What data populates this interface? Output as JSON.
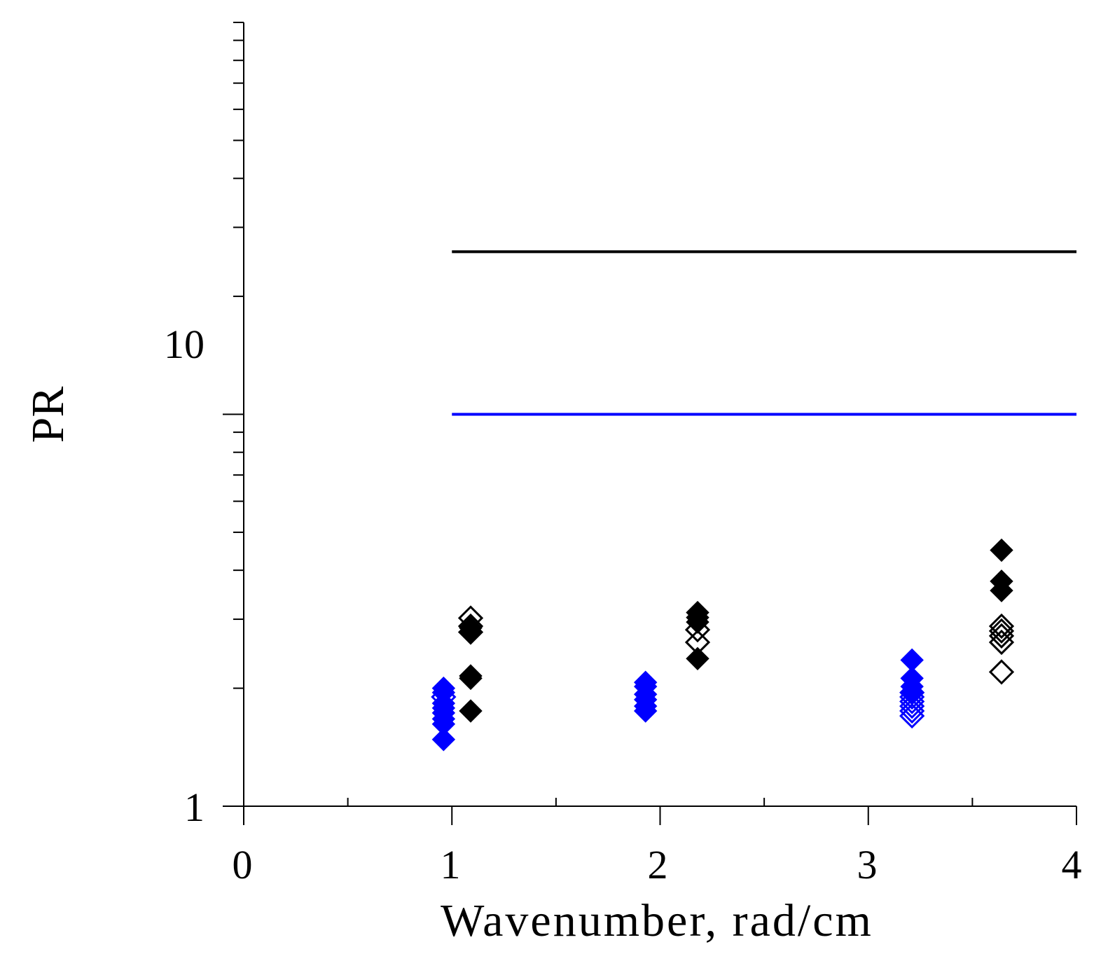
{
  "chart_data": {
    "type": "scatter",
    "title": "",
    "xlabel": "Wavenumber, rad/cm",
    "ylabel": "PR",
    "xlim": [
      0,
      4
    ],
    "ylim": [
      1,
      100
    ],
    "y_scale": "log",
    "x_tick_labels": [
      "0",
      "1",
      "2",
      "3",
      "4"
    ],
    "y_tick_labels": [
      "1",
      "10"
    ],
    "grid": false,
    "reference_lines": [
      {
        "y": 26,
        "x_range": [
          1,
          4
        ],
        "color": "#000000"
      },
      {
        "y": 10,
        "x_range": [
          1,
          4
        ],
        "color": "#0000ff"
      }
    ],
    "series": [
      {
        "color": "#0000ff",
        "marker": "diamond-filled",
        "points": [
          [
            0.96,
            1.48
          ],
          [
            0.96,
            1.62
          ],
          [
            0.96,
            1.67
          ],
          [
            0.96,
            1.73
          ],
          [
            0.96,
            1.78
          ],
          [
            0.96,
            1.83
          ],
          [
            0.96,
            1.95
          ],
          [
            0.96,
            2.0
          ],
          [
            1.93,
            1.75
          ],
          [
            1.93,
            1.8
          ],
          [
            1.93,
            1.87
          ],
          [
            1.93,
            1.93
          ],
          [
            1.93,
            2.02
          ],
          [
            1.93,
            2.07
          ],
          [
            3.21,
            1.95
          ],
          [
            3.21,
            2.02
          ],
          [
            3.21,
            2.12
          ],
          [
            3.21,
            2.36
          ]
        ]
      },
      {
        "color": "#0000ff",
        "marker": "diamond-open",
        "points": [
          [
            0.96,
            1.9
          ],
          [
            3.21,
            1.7
          ],
          [
            3.21,
            1.75
          ],
          [
            3.21,
            1.8
          ],
          [
            3.21,
            1.85
          ],
          [
            3.21,
            1.9
          ],
          [
            3.21,
            1.95
          ]
        ]
      },
      {
        "color": "#000000",
        "marker": "diamond-filled",
        "points": [
          [
            1.09,
            1.75
          ],
          [
            1.09,
            2.12
          ],
          [
            1.09,
            2.15
          ],
          [
            1.09,
            2.77
          ],
          [
            1.09,
            2.85
          ],
          [
            2.18,
            2.38
          ],
          [
            2.18,
            2.95
          ],
          [
            2.18,
            3.03
          ],
          [
            2.18,
            3.12
          ],
          [
            3.64,
            3.55
          ],
          [
            3.64,
            3.75
          ],
          [
            3.64,
            4.5
          ]
        ]
      },
      {
        "color": "#000000",
        "marker": "diamond-open",
        "points": [
          [
            1.09,
            2.78
          ],
          [
            1.09,
            2.88
          ],
          [
            1.09,
            3.02
          ],
          [
            2.18,
            2.62
          ],
          [
            2.18,
            2.82
          ],
          [
            3.64,
            2.2
          ],
          [
            3.64,
            2.62
          ],
          [
            3.64,
            2.72
          ],
          [
            3.64,
            2.8
          ],
          [
            3.64,
            2.88
          ]
        ]
      }
    ]
  }
}
